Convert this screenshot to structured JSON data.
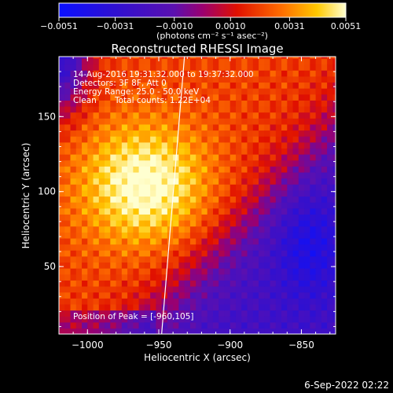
{
  "chart_data": {
    "type": "heatmap",
    "title": "Reconstructed RHESSI Image",
    "xlabel": "Heliocentric X (arcsec)",
    "ylabel": "Heliocentric Y (arcsec)",
    "xlim": [
      -1020,
      -826
    ],
    "ylim": [
      5,
      190
    ],
    "x_ticks": [
      -1000,
      -950,
      -900,
      -850
    ],
    "y_ticks": [
      50,
      100,
      150
    ],
    "x_tick_labels": [
      "−1000",
      "−950",
      "−900",
      "−850"
    ],
    "y_tick_labels": [
      "50",
      "100",
      "150"
    ],
    "colorbar": {
      "min": -0.0051,
      "max": 0.0051,
      "ticks": [
        -0.0051,
        -0.0031,
        -0.001,
        0.001,
        0.0031,
        0.0051
      ],
      "tick_labels": [
        "−0.0051",
        "−0.0031",
        "−0.0010",
        "0.0010",
        "0.0031",
        "0.0051"
      ],
      "label": "(photons cm⁻² s⁻¹ asec⁻²)",
      "colormap": "rhessi-blue-red-yellow"
    },
    "annotations": {
      "time_range": "14-Aug-2016 19:31:32.000 to 19:37:32.000",
      "detectors": "Detectors: 3F 8F, Att 0",
      "energy": "Energy Range: 25.0 - 50.0 keV",
      "method": "Clean",
      "total_counts": "Total counts: 1.22E+04",
      "peak": "Position of Peak = [-960,105]"
    },
    "peak": {
      "x": -960,
      "y": 105
    },
    "limb_line": {
      "x": [
        -948,
        -932
      ],
      "y": [
        5,
        190
      ]
    },
    "grid": false
  },
  "footer": {
    "date": "6-Sep-2022 02:22"
  },
  "colors": {
    "background": "#000000",
    "foreground": "#ffffff"
  }
}
